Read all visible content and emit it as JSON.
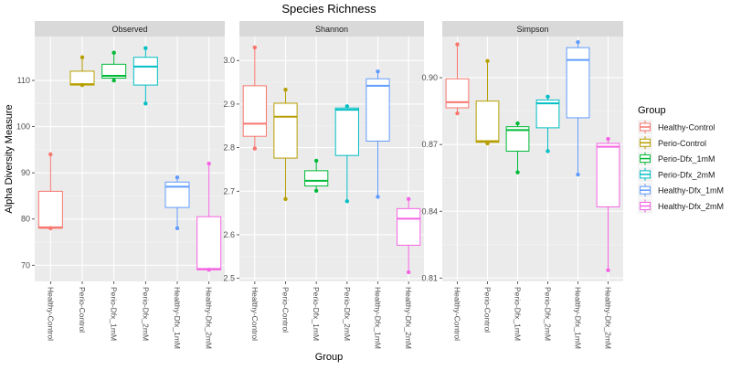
{
  "chart_data": {
    "type": "box",
    "title": "Species Richness",
    "xlabel": "Group",
    "ylabel": "Alpha Diversity Measure",
    "categories": [
      "Healthy-Control",
      "Perio-Control",
      "Perio-Dfx_1mM",
      "Perio-Dfx_2mM",
      "Healthy-Dfx_1mM",
      "Healthy-Dfx_2mM"
    ],
    "legend": {
      "title": "Group",
      "position": "right",
      "entries": [
        {
          "name": "Healthy-Control",
          "color": "#f8766d"
        },
        {
          "name": "Perio-Control",
          "color": "#b79f00"
        },
        {
          "name": "Perio-Dfx_1mM",
          "color": "#00ba38"
        },
        {
          "name": "Perio-Dfx_2mM",
          "color": "#00bfc4"
        },
        {
          "name": "Healthy-Dfx_1mM",
          "color": "#619cff"
        },
        {
          "name": "Healthy-Dfx_2mM",
          "color": "#f564e3"
        }
      ]
    },
    "panels": [
      {
        "name": "Observed",
        "ylim": [
          66.5,
          119.5
        ],
        "yticks": [
          70,
          80,
          90,
          100,
          110
        ],
        "ytick_labels": [
          "70",
          "80",
          "90",
          "100",
          "110"
        ],
        "boxes": [
          {
            "min": 78,
            "q1": 78,
            "median": 78.2,
            "q3": 86,
            "max": 94,
            "points": [
              78,
              94
            ]
          },
          {
            "min": 109,
            "q1": 109,
            "median": 109.2,
            "q3": 112,
            "max": 115,
            "points": [
              109,
              115
            ]
          },
          {
            "min": 110,
            "q1": 110.5,
            "median": 111,
            "q3": 113.5,
            "max": 116,
            "points": [
              110,
              116
            ]
          },
          {
            "min": 105,
            "q1": 109,
            "median": 113,
            "q3": 115,
            "max": 117,
            "points": [
              105,
              117
            ]
          },
          {
            "min": 78,
            "q1": 82.5,
            "median": 87,
            "q3": 88,
            "max": 89,
            "points": [
              78,
              89
            ]
          },
          {
            "min": 69,
            "q1": 69,
            "median": 69.2,
            "q3": 80.5,
            "max": 92,
            "points": [
              69,
              92
            ]
          }
        ]
      },
      {
        "name": "Shannon",
        "ylim": [
          2.493,
          3.055
        ],
        "yticks": [
          2.5,
          2.6,
          2.7,
          2.8,
          2.9,
          3.0
        ],
        "ytick_labels": [
          "2.5",
          "2.6",
          "2.7",
          "2.8",
          "2.9",
          "3.0"
        ],
        "boxes": [
          {
            "min": 2.798,
            "q1": 2.826,
            "median": 2.855,
            "q3": 2.942,
            "max": 3.03,
            "points": [
              2.798,
              3.03
            ]
          },
          {
            "min": 2.682,
            "q1": 2.776,
            "median": 2.871,
            "q3": 2.902,
            "max": 2.933,
            "points": [
              2.682,
              2.933
            ]
          },
          {
            "min": 2.701,
            "q1": 2.712,
            "median": 2.724,
            "q3": 2.747,
            "max": 2.77,
            "points": [
              2.701,
              2.77
            ]
          },
          {
            "min": 2.677,
            "q1": 2.782,
            "median": 2.887,
            "q3": 2.891,
            "max": 2.895,
            "points": [
              2.677,
              2.895
            ]
          },
          {
            "min": 2.687,
            "q1": 2.815,
            "median": 2.942,
            "q3": 2.958,
            "max": 2.975,
            "points": [
              2.687,
              2.975
            ]
          },
          {
            "min": 2.514,
            "q1": 2.576,
            "median": 2.637,
            "q3": 2.66,
            "max": 2.682,
            "points": [
              2.514,
              2.682
            ]
          }
        ]
      },
      {
        "name": "Simpson",
        "ylim": [
          0.8085,
          0.9185
        ],
        "yticks": [
          0.81,
          0.84,
          0.87,
          0.9
        ],
        "ytick_labels": [
          "0.81",
          "0.84",
          "0.87",
          "0.90"
        ],
        "boxes": [
          {
            "min": 0.884,
            "q1": 0.8865,
            "median": 0.889,
            "q3": 0.8995,
            "max": 0.915,
            "points": [
              0.884,
              0.915
            ]
          },
          {
            "min": 0.8705,
            "q1": 0.871,
            "median": 0.8715,
            "q3": 0.8895,
            "max": 0.9075,
            "points": [
              0.8705,
              0.9075
            ]
          },
          {
            "min": 0.8575,
            "q1": 0.867,
            "median": 0.8765,
            "q3": 0.878,
            "max": 0.8795,
            "points": [
              0.8575,
              0.8795
            ]
          },
          {
            "min": 0.867,
            "q1": 0.8775,
            "median": 0.8885,
            "q3": 0.89,
            "max": 0.8915,
            "points": [
              0.867,
              0.8915
            ]
          },
          {
            "min": 0.8565,
            "q1": 0.882,
            "median": 0.908,
            "q3": 0.9135,
            "max": 0.916,
            "points": [
              0.8565,
              0.916
            ]
          },
          {
            "min": 0.8135,
            "q1": 0.842,
            "median": 0.869,
            "q3": 0.8705,
            "max": 0.8725,
            "points": [
              0.8135,
              0.8725
            ]
          }
        ]
      }
    ]
  }
}
